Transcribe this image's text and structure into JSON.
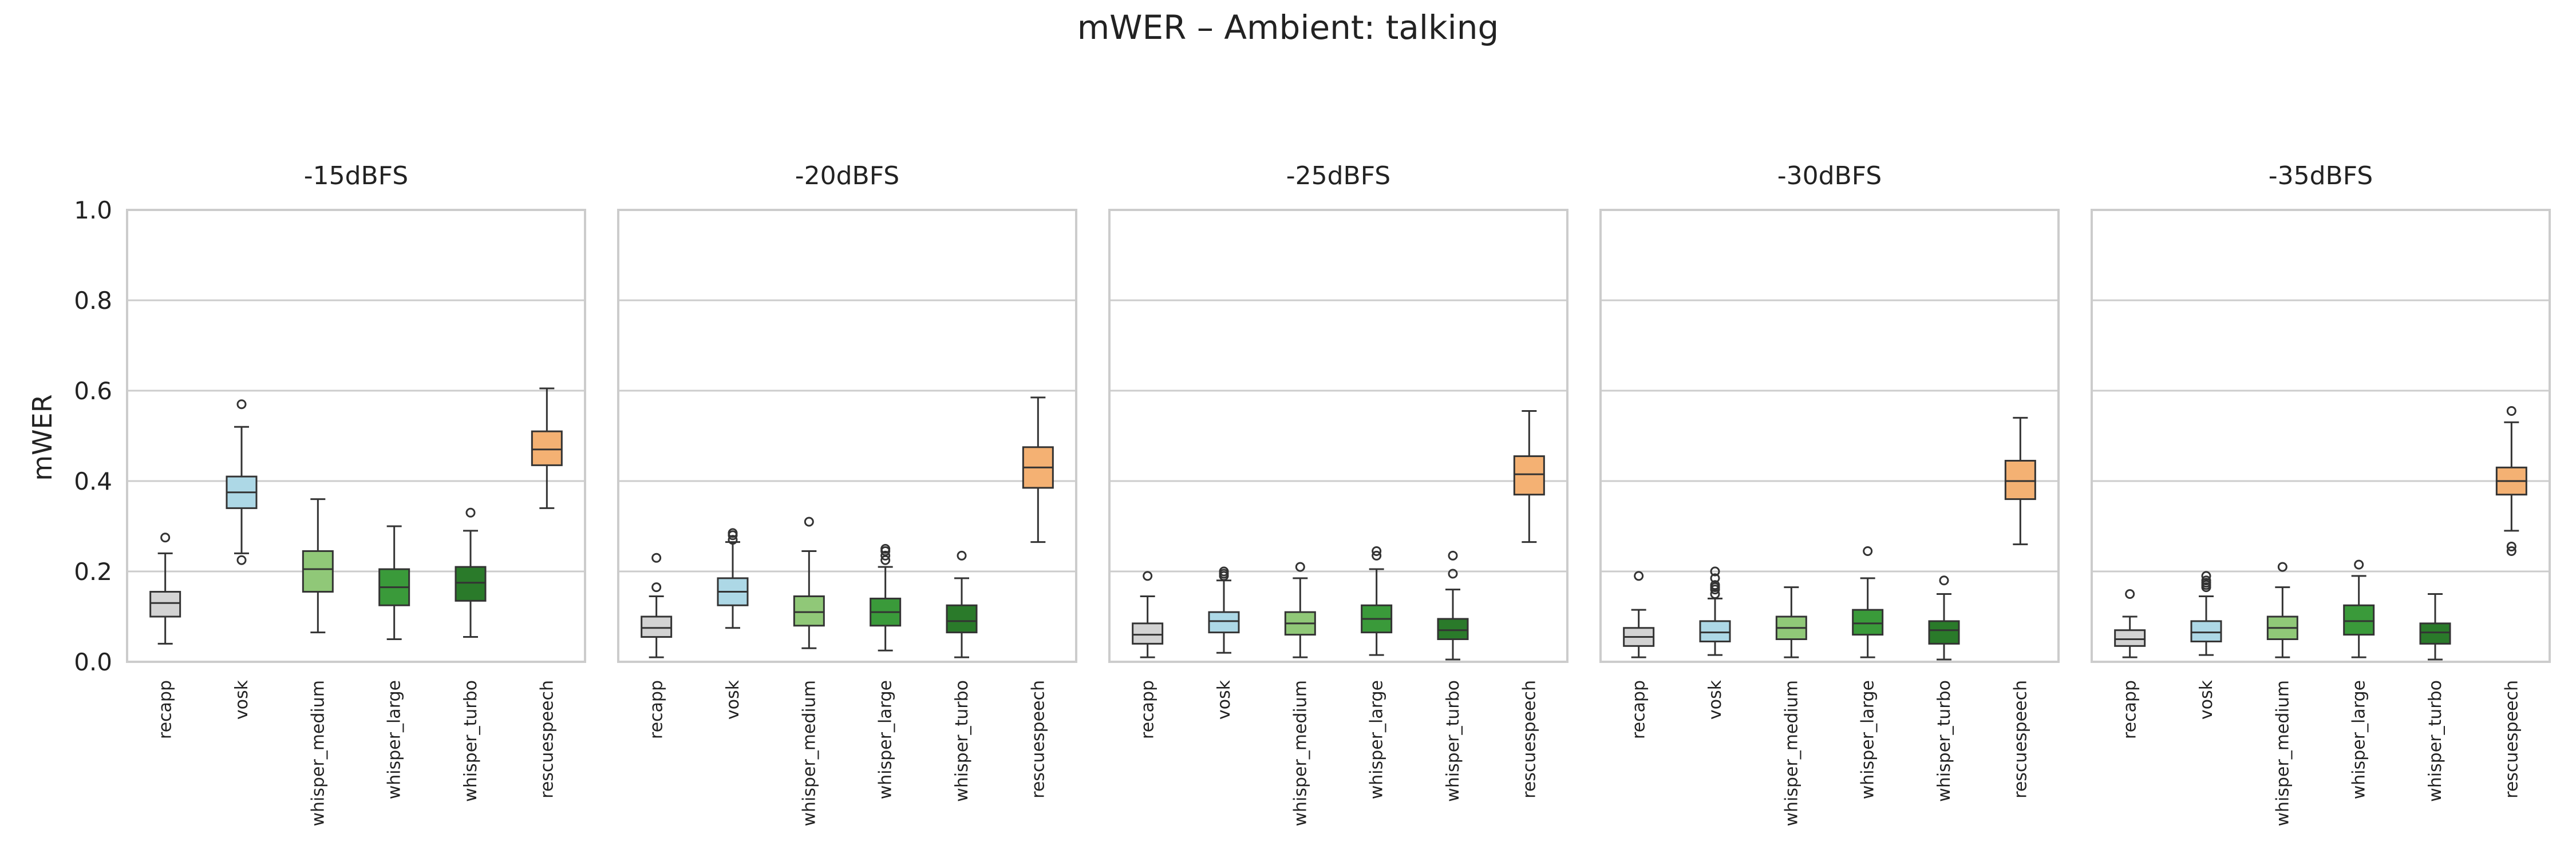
{
  "figure": {
    "title": "mWER – Ambient: talking"
  },
  "chart_data": {
    "type": "box",
    "title": "mWER – Ambient: talking",
    "ylabel": "mWER",
    "ylim": [
      0,
      1
    ],
    "yticks": [
      "0.0",
      "0.2",
      "0.4",
      "0.6",
      "0.8",
      "1.0"
    ],
    "grid": true,
    "categories": [
      "recapp",
      "vosk",
      "whisper_medium",
      "whisper_large",
      "whisper_turbo",
      "rescuespeech"
    ],
    "colors": {
      "recapp": "#d3d3d3",
      "vosk": "#add8e6",
      "whisper_medium": "#90c878",
      "whisper_large": "#3a9a3a",
      "whisper_turbo": "#2a7a2a",
      "rescuespeech": "#f4b173"
    },
    "panels": [
      {
        "title": "-15dBFS",
        "boxes": [
          {
            "model": "recapp",
            "whislo": 0.04,
            "q1": 0.1,
            "med": 0.13,
            "q3": 0.155,
            "whishi": 0.24,
            "fliers": [
              0.275
            ]
          },
          {
            "model": "vosk",
            "whislo": 0.24,
            "q1": 0.34,
            "med": 0.375,
            "q3": 0.41,
            "whishi": 0.52,
            "fliers": [
              0.57,
              0.225
            ]
          },
          {
            "model": "whisper_medium",
            "whislo": 0.065,
            "q1": 0.155,
            "med": 0.205,
            "q3": 0.245,
            "whishi": 0.36,
            "fliers": []
          },
          {
            "model": "whisper_large",
            "whislo": 0.05,
            "q1": 0.125,
            "med": 0.165,
            "q3": 0.205,
            "whishi": 0.3,
            "fliers": []
          },
          {
            "model": "whisper_turbo",
            "whislo": 0.055,
            "q1": 0.135,
            "med": 0.175,
            "q3": 0.21,
            "whishi": 0.29,
            "fliers": [
              0.33
            ]
          },
          {
            "model": "rescuespeech",
            "whislo": 0.34,
            "q1": 0.435,
            "med": 0.47,
            "q3": 0.51,
            "whishi": 0.605,
            "fliers": []
          }
        ]
      },
      {
        "title": "-20dBFS",
        "boxes": [
          {
            "model": "recapp",
            "whislo": 0.01,
            "q1": 0.055,
            "med": 0.075,
            "q3": 0.1,
            "whishi": 0.145,
            "fliers": [
              0.165,
              0.23
            ]
          },
          {
            "model": "vosk",
            "whislo": 0.075,
            "q1": 0.125,
            "med": 0.155,
            "q3": 0.185,
            "whishi": 0.265,
            "fliers": [
              0.27,
              0.28,
              0.285
            ]
          },
          {
            "model": "whisper_medium",
            "whislo": 0.03,
            "q1": 0.08,
            "med": 0.11,
            "q3": 0.145,
            "whishi": 0.245,
            "fliers": [
              0.31
            ]
          },
          {
            "model": "whisper_large",
            "whislo": 0.025,
            "q1": 0.08,
            "med": 0.11,
            "q3": 0.14,
            "whishi": 0.21,
            "fliers": [
              0.225,
              0.235,
              0.245,
              0.25
            ]
          },
          {
            "model": "whisper_turbo",
            "whislo": 0.01,
            "q1": 0.065,
            "med": 0.09,
            "q3": 0.125,
            "whishi": 0.185,
            "fliers": [
              0.235
            ]
          },
          {
            "model": "rescuespeech",
            "whislo": 0.265,
            "q1": 0.385,
            "med": 0.43,
            "q3": 0.475,
            "whishi": 0.585,
            "fliers": []
          }
        ]
      },
      {
        "title": "-25dBFS",
        "boxes": [
          {
            "model": "recapp",
            "whislo": 0.01,
            "q1": 0.04,
            "med": 0.06,
            "q3": 0.085,
            "whishi": 0.145,
            "fliers": [
              0.19
            ]
          },
          {
            "model": "vosk",
            "whislo": 0.02,
            "q1": 0.065,
            "med": 0.09,
            "q3": 0.11,
            "whishi": 0.18,
            "fliers": [
              0.19,
              0.195,
              0.2
            ]
          },
          {
            "model": "whisper_medium",
            "whislo": 0.01,
            "q1": 0.06,
            "med": 0.085,
            "q3": 0.11,
            "whishi": 0.185,
            "fliers": [
              0.21
            ]
          },
          {
            "model": "whisper_large",
            "whislo": 0.015,
            "q1": 0.065,
            "med": 0.095,
            "q3": 0.125,
            "whishi": 0.205,
            "fliers": [
              0.235,
              0.245
            ]
          },
          {
            "model": "whisper_turbo",
            "whislo": 0.005,
            "q1": 0.05,
            "med": 0.07,
            "q3": 0.095,
            "whishi": 0.16,
            "fliers": [
              0.195,
              0.235
            ]
          },
          {
            "model": "rescuespeech",
            "whislo": 0.265,
            "q1": 0.37,
            "med": 0.415,
            "q3": 0.455,
            "whishi": 0.555,
            "fliers": []
          }
        ]
      },
      {
        "title": "-30dBFS",
        "boxes": [
          {
            "model": "recapp",
            "whislo": 0.01,
            "q1": 0.035,
            "med": 0.055,
            "q3": 0.075,
            "whishi": 0.115,
            "fliers": [
              0.19
            ]
          },
          {
            "model": "vosk",
            "whislo": 0.015,
            "q1": 0.045,
            "med": 0.065,
            "q3": 0.09,
            "whishi": 0.14,
            "fliers": [
              0.15,
              0.16,
              0.165,
              0.17,
              0.185,
              0.2
            ]
          },
          {
            "model": "whisper_medium",
            "whislo": 0.01,
            "q1": 0.05,
            "med": 0.075,
            "q3": 0.1,
            "whishi": 0.165,
            "fliers": []
          },
          {
            "model": "whisper_large",
            "whislo": 0.01,
            "q1": 0.06,
            "med": 0.085,
            "q3": 0.115,
            "whishi": 0.185,
            "fliers": [
              0.245
            ]
          },
          {
            "model": "whisper_turbo",
            "whislo": 0.005,
            "q1": 0.04,
            "med": 0.07,
            "q3": 0.09,
            "whishi": 0.15,
            "fliers": [
              0.18
            ]
          },
          {
            "model": "rescuespeech",
            "whislo": 0.26,
            "q1": 0.36,
            "med": 0.4,
            "q3": 0.445,
            "whishi": 0.54,
            "fliers": []
          }
        ]
      },
      {
        "title": "-35dBFS",
        "boxes": [
          {
            "model": "recapp",
            "whislo": 0.01,
            "q1": 0.035,
            "med": 0.05,
            "q3": 0.07,
            "whishi": 0.1,
            "fliers": [
              0.15
            ]
          },
          {
            "model": "vosk",
            "whislo": 0.015,
            "q1": 0.045,
            "med": 0.065,
            "q3": 0.09,
            "whishi": 0.145,
            "fliers": [
              0.165,
              0.17,
              0.175,
              0.18,
              0.19
            ]
          },
          {
            "model": "whisper_medium",
            "whislo": 0.01,
            "q1": 0.05,
            "med": 0.075,
            "q3": 0.1,
            "whishi": 0.165,
            "fliers": [
              0.21
            ]
          },
          {
            "model": "whisper_large",
            "whislo": 0.01,
            "q1": 0.06,
            "med": 0.09,
            "q3": 0.125,
            "whishi": 0.19,
            "fliers": [
              0.215
            ]
          },
          {
            "model": "whisper_turbo",
            "whislo": 0.005,
            "q1": 0.04,
            "med": 0.065,
            "q3": 0.085,
            "whishi": 0.15,
            "fliers": []
          },
          {
            "model": "rescuespeech",
            "whislo": 0.29,
            "q1": 0.37,
            "med": 0.4,
            "q3": 0.43,
            "whishi": 0.53,
            "fliers": [
              0.555,
              0.255,
              0.245
            ]
          }
        ]
      }
    ]
  }
}
